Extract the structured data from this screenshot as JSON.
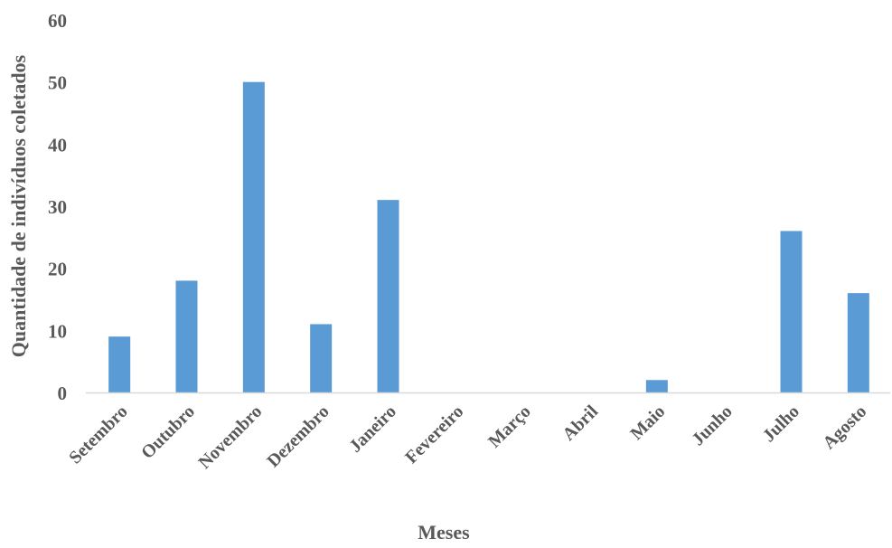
{
  "chart_data": {
    "type": "bar",
    "categories": [
      "Setembro",
      "Outubro",
      "Novembro",
      "Dezembro",
      "Janeiro",
      "Fevereiro",
      "Março",
      "Abril",
      "Maio",
      "Junho",
      "Julho",
      "Agosto"
    ],
    "values": [
      9,
      18,
      50,
      11,
      31,
      0,
      0,
      0,
      2,
      0,
      26,
      16
    ],
    "xlabel": "Meses",
    "ylabel": "Quantidade de indivíduos coletados",
    "ylim": [
      0,
      60
    ],
    "yticks": [
      "0",
      "10",
      "20",
      "30",
      "40",
      "50",
      "60"
    ],
    "grid": false,
    "bar_color": "#5B9BD5",
    "axis_color": "#D9D9D9",
    "text_color": "#595959"
  }
}
